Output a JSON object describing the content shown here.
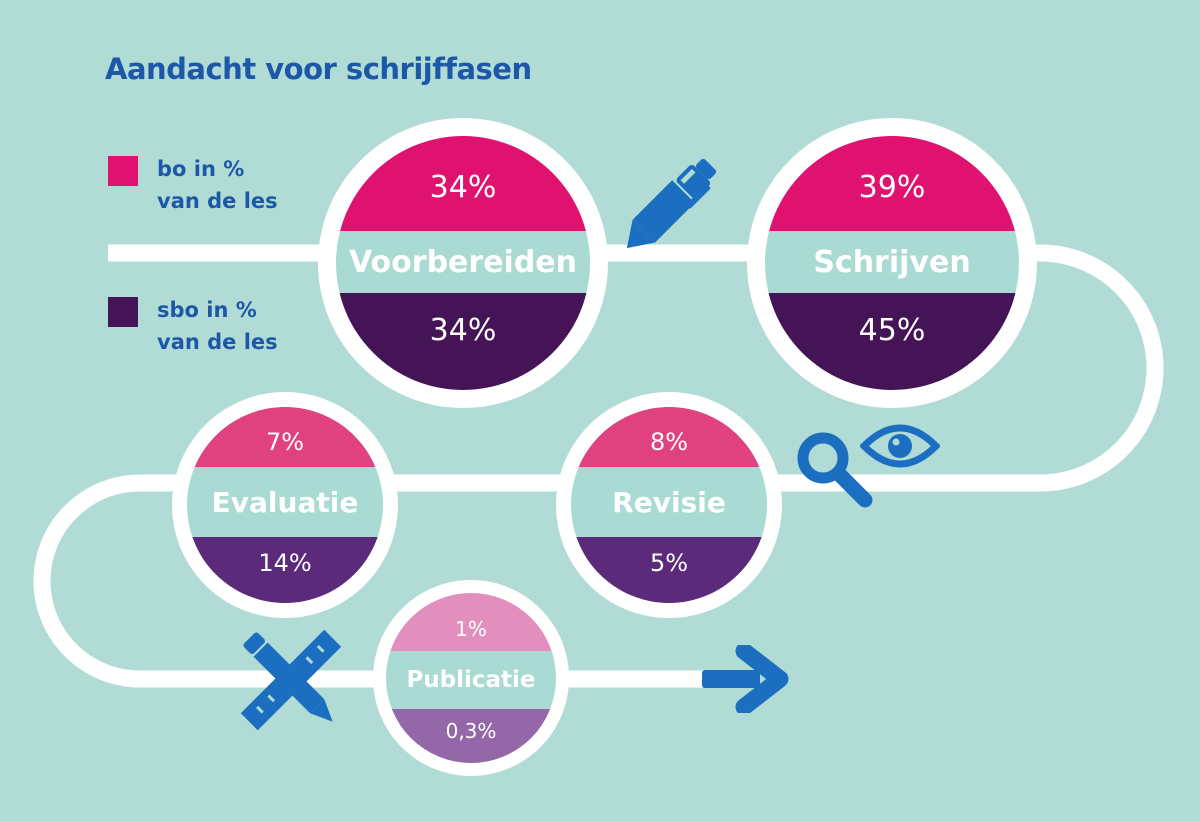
{
  "title": "Aandacht voor schrijffasen",
  "legend": [
    {
      "label_line1": "bo in %",
      "label_line2": "van de les",
      "color": "#e0126f"
    },
    {
      "label_line1": "sbo in %",
      "label_line2": "van de les",
      "color": "#451457"
    }
  ],
  "phases": {
    "voorbereiden": {
      "name": "Voorbereiden",
      "bo": "34%",
      "sbo": "34%"
    },
    "schrijven": {
      "name": "Schrijven",
      "bo": "39%",
      "sbo": "45%"
    },
    "revisie": {
      "name": "Revisie",
      "bo": "8%",
      "sbo": "5%"
    },
    "evaluatie": {
      "name": "Evaluatie",
      "bo": "7%",
      "sbo": "14%"
    },
    "publicatie": {
      "name": "Publicatie",
      "bo": "1%",
      "sbo": "0,3%"
    }
  },
  "colors": {
    "background": "#b1dcd5",
    "road": "#ffffff",
    "middle_band": "#a9dad3",
    "icon_blue": "#1c6fc0",
    "title_blue": "#1c57a8"
  },
  "icons": [
    "pen-icon",
    "magnifier-icon",
    "eye-icon",
    "ruler-pencil-icon",
    "arrow-right-icon"
  ]
}
